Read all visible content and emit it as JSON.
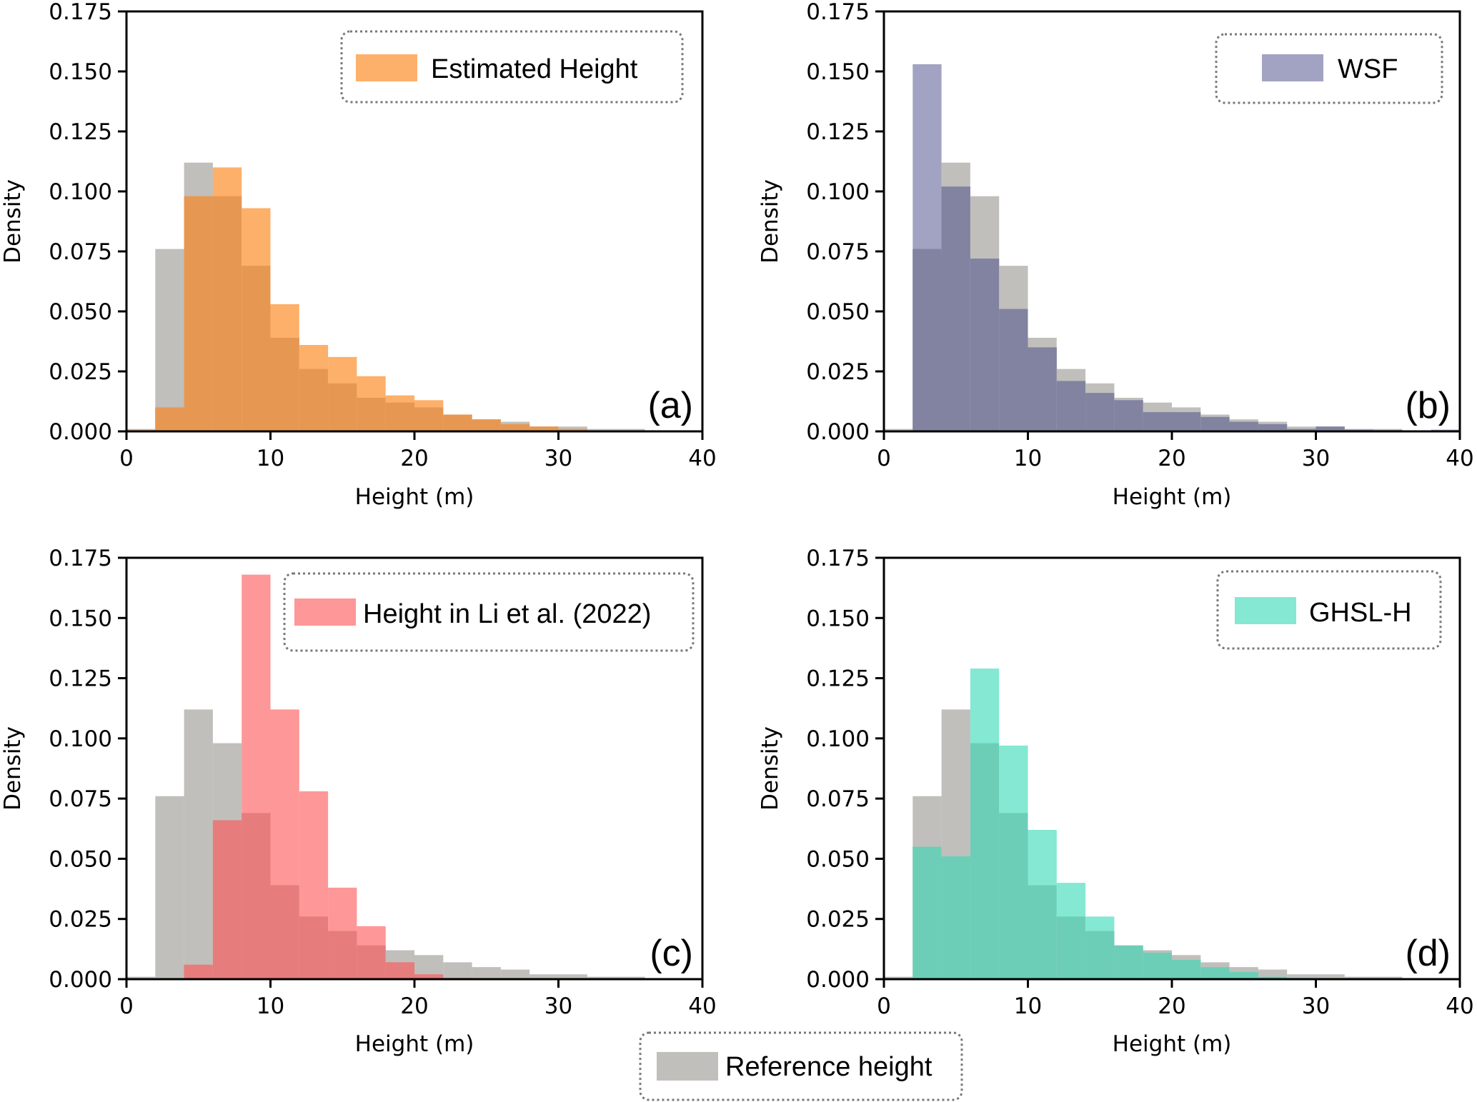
{
  "figure": {
    "shared_legend": {
      "label": "Reference height",
      "color": "#C0BFBB"
    },
    "reference_color": "#C0BFBB"
  },
  "chart_data": [
    {
      "type": "bar",
      "subtype": "overlaid-histogram",
      "panel": "(a)",
      "xlabel": "Height (m)",
      "ylabel": "Density",
      "xlim": [
        0,
        40
      ],
      "ylim": [
        0,
        0.175
      ],
      "xticks": [
        "0",
        "10",
        "20",
        "30",
        "40"
      ],
      "yticks": [
        "0.000",
        "0.025",
        "0.050",
        "0.075",
        "0.100",
        "0.125",
        "0.150",
        "0.175"
      ],
      "grid": false,
      "legend": {
        "label": "Estimated Height",
        "placement": "top-right"
      },
      "bin_edges": [
        0,
        2,
        4,
        6,
        8,
        10,
        12,
        14,
        16,
        18,
        20,
        22,
        24,
        26,
        28,
        30,
        32,
        34,
        36,
        38,
        40
      ],
      "series": [
        {
          "name": "Reference height",
          "color": "#C0BFBB",
          "values": [
            0.001,
            0.076,
            0.112,
            0.098,
            0.069,
            0.039,
            0.026,
            0.02,
            0.014,
            0.012,
            0.01,
            0.007,
            0.005,
            0.004,
            0.002,
            0.002,
            0.001,
            0.001,
            0.0003,
            0.0003
          ]
        },
        {
          "name": "Estimated Height",
          "color": "#FDB06A",
          "overlap_color": "#E69853",
          "values": [
            0.0005,
            0.01,
            0.098,
            0.11,
            0.093,
            0.053,
            0.036,
            0.031,
            0.023,
            0.015,
            0.013,
            0.007,
            0.005,
            0.003,
            0.002,
            0.001,
            0.0003,
            0.0003,
            0.0002,
            0.0002
          ]
        }
      ]
    },
    {
      "type": "bar",
      "subtype": "overlaid-histogram",
      "panel": "(b)",
      "xlabel": "Height (m)",
      "ylabel": "Density",
      "xlim": [
        0,
        40
      ],
      "ylim": [
        0,
        0.175
      ],
      "xticks": [
        "0",
        "10",
        "20",
        "30",
        "40"
      ],
      "yticks": [
        "0.000",
        "0.025",
        "0.050",
        "0.075",
        "0.100",
        "0.125",
        "0.150",
        "0.175"
      ],
      "grid": false,
      "legend": {
        "label": "WSF",
        "placement": "top-right"
      },
      "bin_edges": [
        0,
        2,
        4,
        6,
        8,
        10,
        12,
        14,
        16,
        18,
        20,
        22,
        24,
        26,
        28,
        30,
        32,
        34,
        36,
        38,
        40
      ],
      "series": [
        {
          "name": "Reference height",
          "color": "#C0BFBB",
          "values": [
            0.001,
            0.076,
            0.112,
            0.098,
            0.069,
            0.039,
            0.026,
            0.02,
            0.014,
            0.012,
            0.01,
            0.007,
            0.005,
            0.004,
            0.002,
            0.002,
            0.001,
            0.001,
            0.0003,
            0.0003
          ]
        },
        {
          "name": "WSF",
          "color": "#A2A3C3",
          "overlap_color": "#8283A0",
          "values": [
            0,
            0.153,
            0.102,
            0.072,
            0.051,
            0.035,
            0.021,
            0.016,
            0.013,
            0.008,
            0.008,
            0.006,
            0.004,
            0.003,
            0.001,
            0.002,
            0.0007,
            0.0005,
            0.0002,
            0.0007
          ]
        }
      ]
    },
    {
      "type": "bar",
      "subtype": "overlaid-histogram",
      "panel": "(c)",
      "xlabel": "Height (m)",
      "ylabel": "Density",
      "xlim": [
        0,
        40
      ],
      "ylim": [
        0,
        0.175
      ],
      "xticks": [
        "0",
        "10",
        "20",
        "30",
        "40"
      ],
      "yticks": [
        "0.000",
        "0.025",
        "0.050",
        "0.075",
        "0.100",
        "0.125",
        "0.150",
        "0.175"
      ],
      "grid": false,
      "legend": {
        "label": "Height in Li et al. (2022)",
        "placement": "top-right"
      },
      "bin_edges": [
        0,
        2,
        4,
        6,
        8,
        10,
        12,
        14,
        16,
        18,
        20,
        22,
        24,
        26,
        28,
        30,
        32,
        34,
        36,
        38,
        40
      ],
      "series": [
        {
          "name": "Reference height",
          "color": "#C0BFBB",
          "values": [
            0.001,
            0.076,
            0.112,
            0.098,
            0.069,
            0.039,
            0.026,
            0.02,
            0.014,
            0.012,
            0.01,
            0.007,
            0.005,
            0.004,
            0.002,
            0.002,
            0.001,
            0.001,
            0.0003,
            0.0003
          ]
        },
        {
          "name": "Height in Li et al. (2022)",
          "color": "#FE9797",
          "overlap_color": "#E67C7C",
          "values": [
            0,
            0,
            0.006,
            0.066,
            0.168,
            0.112,
            0.078,
            0.038,
            0.022,
            0.007,
            0.002,
            0.0005,
            0,
            0,
            0,
            0,
            0,
            0,
            0,
            0
          ]
        }
      ]
    },
    {
      "type": "bar",
      "subtype": "overlaid-histogram",
      "panel": "(d)",
      "xlabel": "Height (m)",
      "ylabel": "Density",
      "xlim": [
        0,
        40
      ],
      "ylim": [
        0,
        0.175
      ],
      "xticks": [
        "0",
        "10",
        "20",
        "30",
        "40"
      ],
      "yticks": [
        "0.000",
        "0.025",
        "0.050",
        "0.075",
        "0.100",
        "0.125",
        "0.150",
        "0.175"
      ],
      "grid": false,
      "legend": {
        "label": "GHSL-H",
        "placement": "top-right"
      },
      "bin_edges": [
        0,
        2,
        4,
        6,
        8,
        10,
        12,
        14,
        16,
        18,
        20,
        22,
        24,
        26,
        28,
        30,
        32,
        34,
        36,
        38,
        40
      ],
      "series": [
        {
          "name": "Reference height",
          "color": "#C0BFBB",
          "values": [
            0.001,
            0.076,
            0.112,
            0.098,
            0.069,
            0.039,
            0.026,
            0.02,
            0.014,
            0.012,
            0.01,
            0.007,
            0.005,
            0.004,
            0.002,
            0.002,
            0.001,
            0.001,
            0.0003,
            0.0003
          ]
        },
        {
          "name": "GHSL-H",
          "color": "#84E8D2",
          "overlap_color": "#6CCEB6",
          "values": [
            0,
            0.055,
            0.051,
            0.129,
            0.097,
            0.062,
            0.04,
            0.026,
            0.014,
            0.011,
            0.008,
            0.005,
            0.003,
            0.001,
            0.0005,
            0.0003,
            0,
            0,
            0,
            0
          ]
        }
      ]
    }
  ]
}
